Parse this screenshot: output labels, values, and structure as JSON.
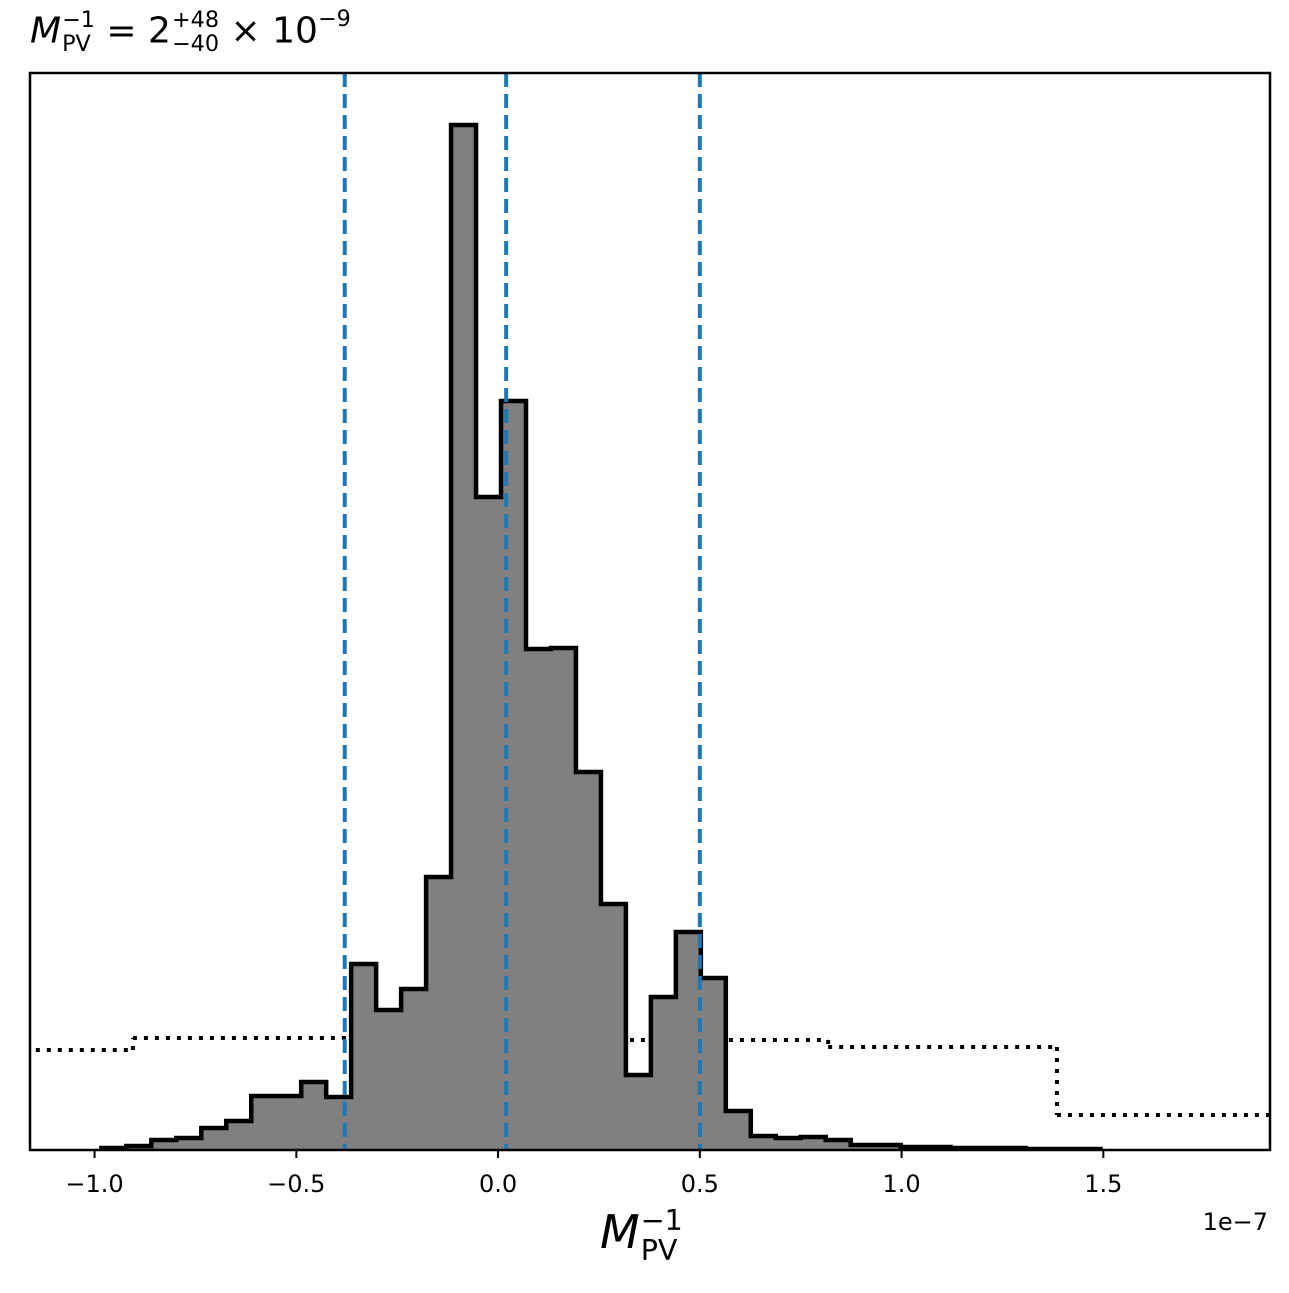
{
  "chart_data": {
    "type": "histogram",
    "title": {
      "symbol": "M",
      "symbol_sup": "−1",
      "symbol_sub": "PV",
      "equals": "=",
      "median": "2",
      "plus": "+48",
      "minus": "−40",
      "times": "×",
      "base": "10",
      "exponent": "−9"
    },
    "xlabel": {
      "symbol": "M",
      "sup": "−1",
      "sub": "PV"
    },
    "x_offset_label": "1e−7",
    "bins": [
      -0.9831,
      -0.9212,
      -0.8593,
      -0.7974,
      -0.7355,
      -0.6736,
      -0.6117,
      -0.5498,
      -0.4879,
      -0.426,
      -0.3641,
      -0.3022,
      -0.2403,
      -0.1784,
      -0.1165,
      -0.0546,
      0.0073,
      0.0692,
      0.1311,
      0.193,
      0.2549,
      0.3168,
      0.3787,
      0.4406,
      0.5025,
      0.5644,
      0.6263,
      0.6882,
      0.7501,
      0.812,
      0.8739,
      0.9358,
      0.9977,
      1.0596,
      1.1215,
      1.1834,
      1.2453,
      1.3072,
      1.3691,
      1.431,
      1.4929
    ],
    "values": [
      2,
      4,
      10,
      12,
      22,
      29,
      54,
      54,
      68,
      53,
      186,
      140,
      161,
      273,
      1025,
      653,
      749,
      501,
      502,
      378,
      246,
      75,
      153,
      218,
      172,
      39,
      14,
      12,
      13,
      10,
      5,
      5,
      3,
      3,
      2,
      2,
      2,
      1,
      1,
      1
    ],
    "color": "#808080",
    "edgecolor": "#000000",
    "prior": {
      "bins": [
        -1.5,
        -0.905,
        0.245,
        0.818,
        1.385,
        2.0
      ],
      "values": [
        100,
        112,
        110,
        103,
        35
      ],
      "color": "#000000"
    },
    "vlines": {
      "values": [
        -0.38,
        0.02,
        0.5
      ],
      "color": "#1f77b4"
    },
    "xlim": [
      -1.16,
      1.913
    ],
    "ylim": [
      0,
      1077
    ],
    "xticks": [
      {
        "value": -1.0,
        "label": "−1.0"
      },
      {
        "value": -0.5,
        "label": "−0.5"
      },
      {
        "value": 0,
        "label": "0.0"
      },
      0.5,
      {
        "value": 1.0,
        "label": "1.0"
      },
      1.5
    ]
  }
}
